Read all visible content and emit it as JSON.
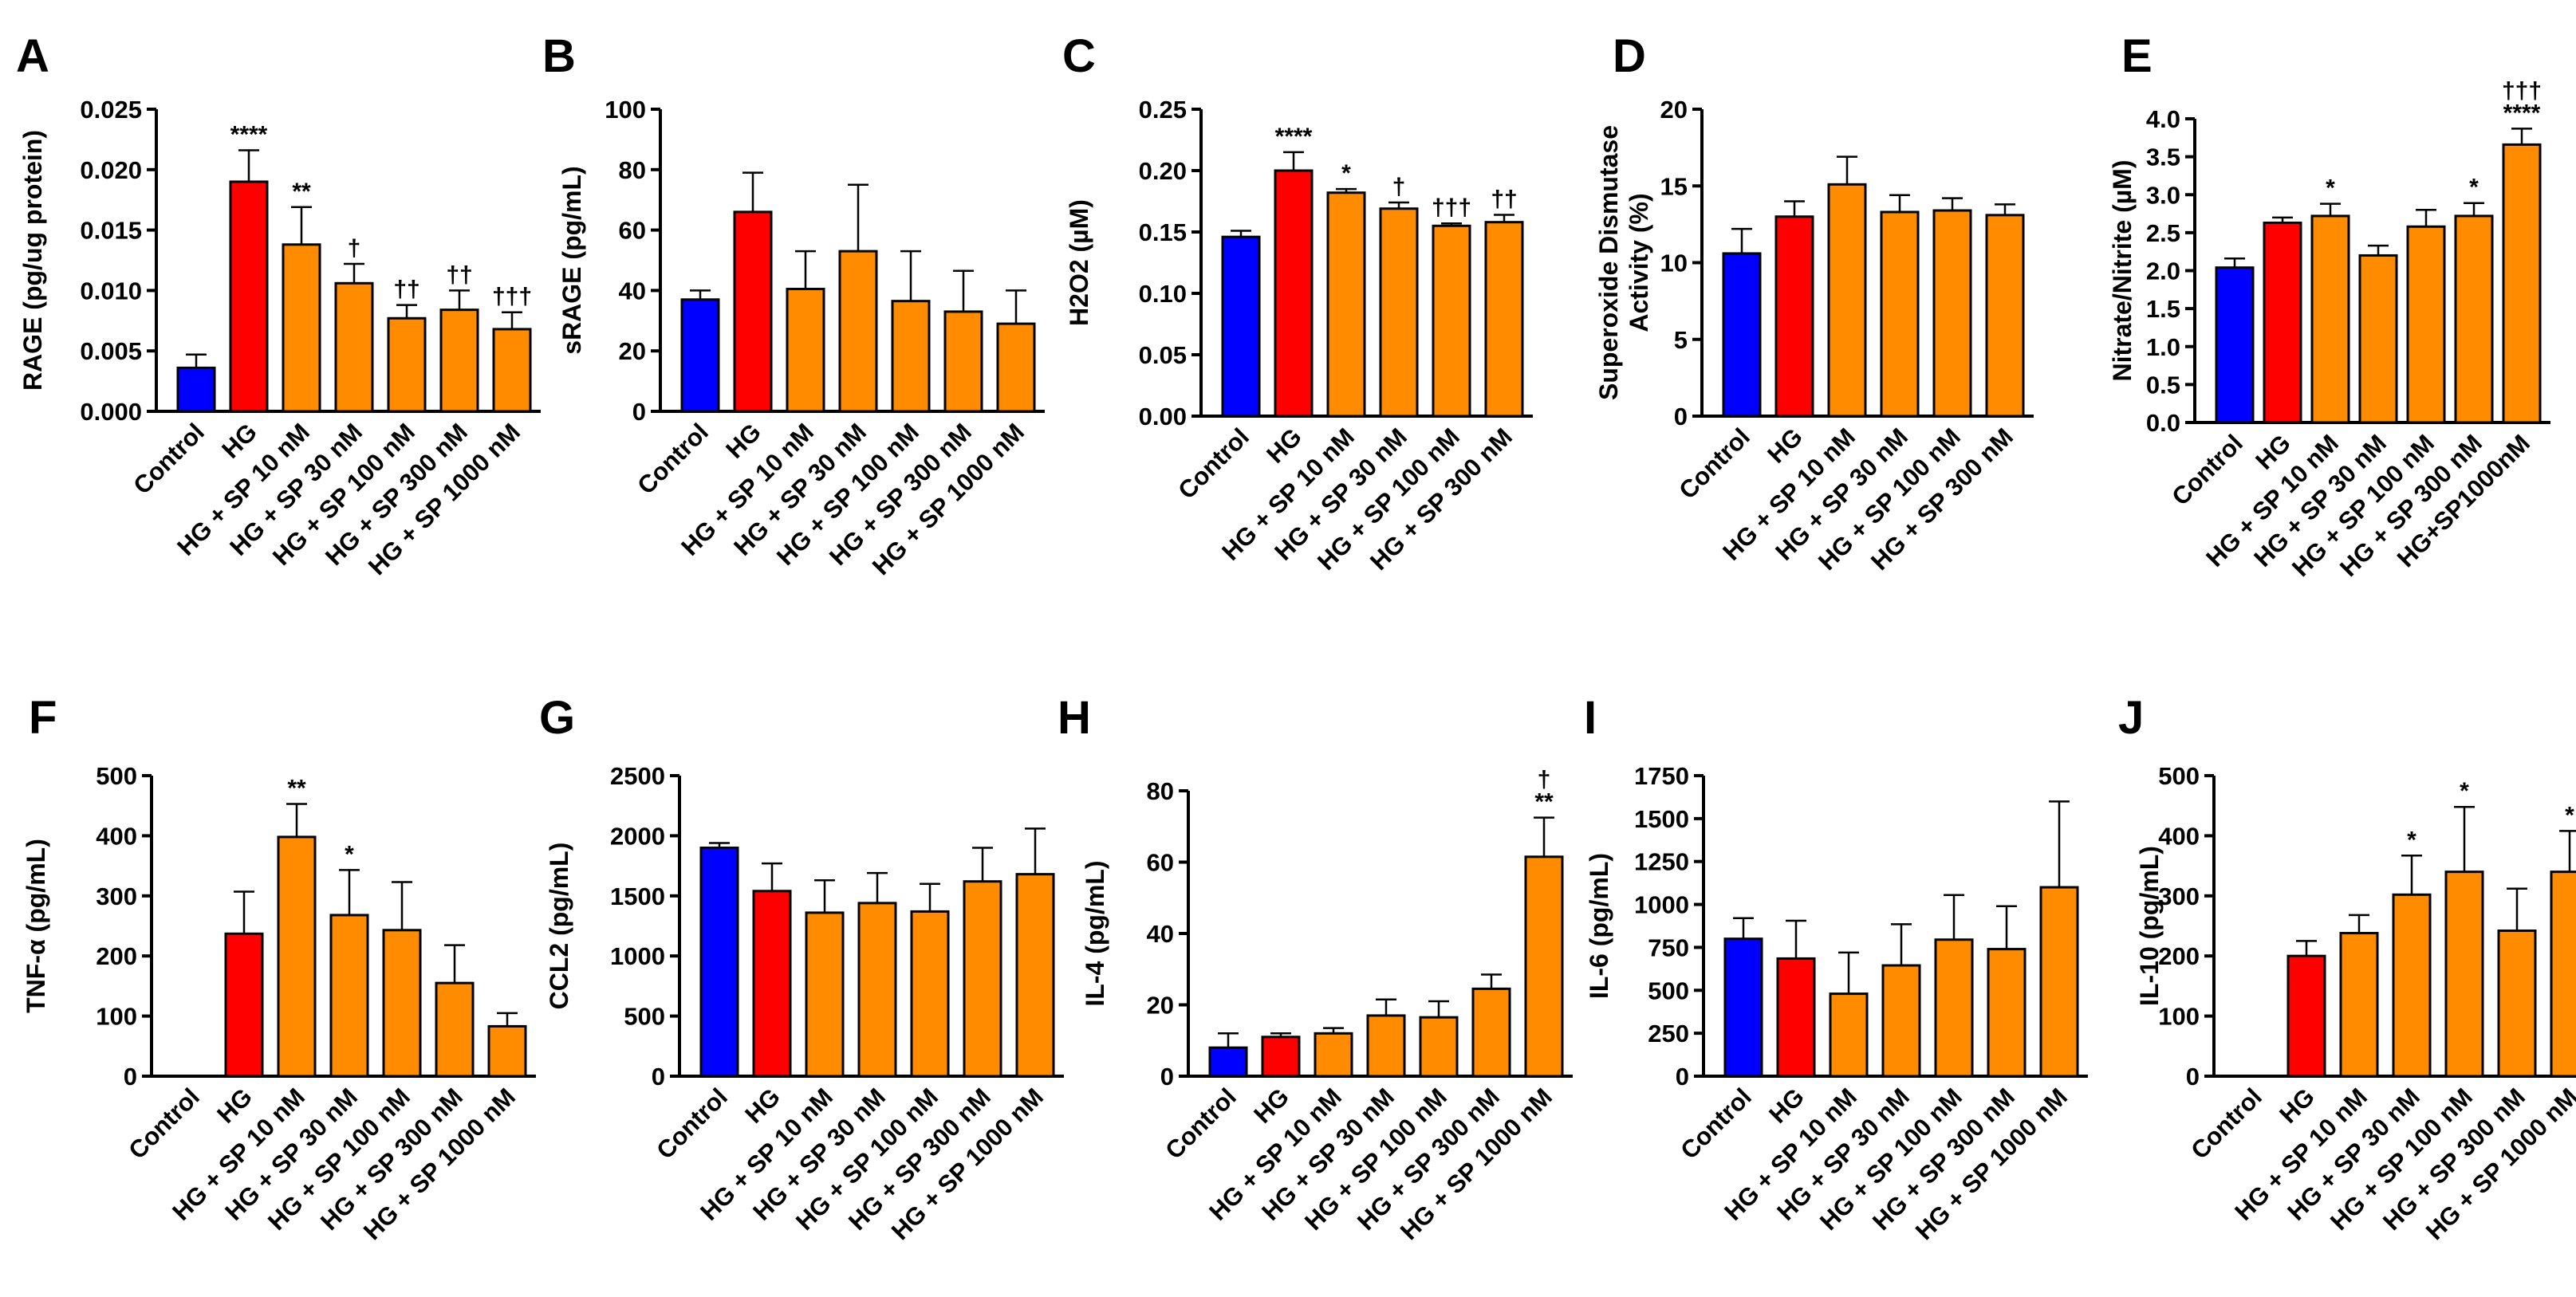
{
  "colors": {
    "control": "#0000ff",
    "hg": "#ff0000",
    "sp": "#ff8c00",
    "axis": "#000000"
  },
  "chart_data": [
    {
      "panel": "A",
      "type": "bar",
      "title": "",
      "ylabel": "RAGE  (pg/ug protein)",
      "ylim": [
        0,
        0.025
      ],
      "yticks": [
        0.0,
        0.005,
        0.01,
        0.015,
        0.02,
        0.025
      ],
      "ytick_labels": [
        "0.000",
        "0.005",
        "0.010",
        "0.015",
        "0.020",
        "0.025"
      ],
      "categories": [
        "Control",
        "HG",
        "HG + SP 10 nM",
        "HG + SP 30 nM",
        "HG + SP 100 nM",
        "HG + SP 300 nM",
        "HG + SP 1000 nM"
      ],
      "values": [
        0.0036,
        0.019,
        0.0138,
        0.0106,
        0.0077,
        0.0084,
        0.0068
      ],
      "errors": [
        0.0011,
        0.0026,
        0.0031,
        0.0016,
        0.0011,
        0.0016,
        0.0014
      ],
      "annotations": [
        "",
        "****",
        "**",
        "†",
        "††",
        "††",
        "†††"
      ]
    },
    {
      "panel": "B",
      "type": "bar",
      "title": "",
      "ylabel": "sRAGE (pg/mL)",
      "ylim": [
        0,
        100
      ],
      "yticks": [
        0,
        20,
        40,
        60,
        80,
        100
      ],
      "ytick_labels": [
        "0",
        "20",
        "40",
        "60",
        "80",
        "100"
      ],
      "categories": [
        "Control",
        "HG",
        "HG + SP 10 nM",
        "HG + SP 30 nM",
        "HG + SP 100 nM",
        "HG + SP 300 nM",
        "HG + SP 1000 nM"
      ],
      "values": [
        37,
        66,
        40.5,
        53,
        36.5,
        33,
        29
      ],
      "errors": [
        3,
        13,
        12.5,
        22,
        16.5,
        13.5,
        11
      ],
      "annotations": [
        "",
        "",
        "",
        "",
        "",
        "",
        ""
      ]
    },
    {
      "panel": "C",
      "type": "bar",
      "title": "",
      "ylabel": "H2O2 (µM)",
      "ylim": [
        0,
        0.25
      ],
      "yticks": [
        0,
        0.05,
        0.1,
        0.15,
        0.2,
        0.25
      ],
      "ytick_labels": [
        "0.00",
        "0.05",
        "0.10",
        "0.15",
        "0.20",
        "0.25"
      ],
      "categories": [
        "Control",
        "HG",
        "HG + SP 10 nM",
        "HG + SP 30 nM",
        "HG + SP 100 nM",
        "HG + SP 300 nM"
      ],
      "values": [
        0.146,
        0.2,
        0.182,
        0.169,
        0.155,
        0.158
      ],
      "errors": [
        0.005,
        0.015,
        0.003,
        0.005,
        0.002,
        0.006
      ],
      "annotations": [
        "",
        "****",
        "*",
        "†",
        "†††",
        "††"
      ]
    },
    {
      "panel": "D",
      "type": "bar",
      "title": "",
      "ylabel": [
        "Superoxide Dismutase",
        "Activity (%)"
      ],
      "ylim": [
        0,
        20
      ],
      "yticks": [
        0,
        5,
        10,
        15,
        20
      ],
      "ytick_labels": [
        "0",
        "5",
        "10",
        "15",
        "20"
      ],
      "categories": [
        "Control",
        "HG",
        "HG + SP 10 nM",
        "HG + SP 30 nM",
        "HG + SP 100 nM",
        "HG + SP 300 nM"
      ],
      "values": [
        10.6,
        13,
        15.1,
        13.3,
        13.4,
        13.1
      ],
      "errors": [
        1.6,
        1,
        1.8,
        1.1,
        0.8,
        0.7
      ],
      "annotations": [
        "",
        "",
        "",
        "",
        "",
        ""
      ]
    },
    {
      "panel": "E",
      "type": "bar",
      "title": "",
      "ylabel": "Nitrate/Nitrite (µM)",
      "ylim": [
        0,
        4
      ],
      "yticks": [
        0,
        0.5,
        1,
        1.5,
        2,
        2.5,
        3,
        3.5,
        4
      ],
      "ytick_labels": [
        "0.0",
        "0.5",
        "1.0",
        "1.5",
        "2.0",
        "2.5",
        "3.0",
        "3.5",
        "4.0"
      ],
      "categories": [
        "Control",
        "HG",
        "HG + SP 10 nM",
        "HG + SP 30 nM",
        "HG + SP 100 nM",
        "HG + SP 300 nM",
        "HG+SP1000nM"
      ],
      "values": [
        2.04,
        2.63,
        2.72,
        2.2,
        2.58,
        2.72,
        3.66
      ],
      "errors": [
        0.12,
        0.07,
        0.16,
        0.13,
        0.22,
        0.17,
        0.21
      ],
      "annotations": [
        "",
        "",
        "*",
        "",
        "",
        "*",
        "†††\n****"
      ]
    },
    {
      "panel": "F",
      "type": "bar",
      "title": "",
      "ylabel": "TNF-α (pg/mL)",
      "ylim": [
        0,
        500
      ],
      "yticks": [
        0,
        100,
        200,
        300,
        400,
        500
      ],
      "ytick_labels": [
        "0",
        "100",
        "200",
        "300",
        "400",
        "500"
      ],
      "categories": [
        "Control",
        "HG",
        "HG + SP 10 nM",
        "HG + SP 30 nM",
        "HG + SP 100 nM",
        "HG + SP 300 nM",
        "HG + SP 1000 nM"
      ],
      "values": [
        0,
        237,
        398,
        268,
        243,
        155,
        83
      ],
      "errors": [
        0,
        70,
        55,
        75,
        80,
        63,
        22
      ],
      "annotations": [
        "",
        "",
        "**",
        "*",
        "",
        "",
        ""
      ]
    },
    {
      "panel": "G",
      "type": "bar",
      "title": "",
      "ylabel": "CCL2 (pg/mL)",
      "ylim": [
        0,
        2500
      ],
      "yticks": [
        0,
        500,
        1000,
        1500,
        2000,
        2500
      ],
      "ytick_labels": [
        "0",
        "500",
        "1000",
        "1500",
        "2000",
        "2500"
      ],
      "categories": [
        "Control",
        "HG",
        "HG + SP 10 nM",
        "HG + SP 30 nM",
        "HG + SP 100 nM",
        "HG + SP 300 nM",
        "HG + SP 1000 nM"
      ],
      "values": [
        1900,
        1540,
        1360,
        1440,
        1370,
        1620,
        1680
      ],
      "errors": [
        40,
        230,
        270,
        250,
        230,
        280,
        380
      ],
      "annotations": [
        "",
        "",
        "",
        "",
        "",
        "",
        ""
      ]
    },
    {
      "panel": "H",
      "type": "bar",
      "title": "",
      "ylabel": "IL-4 (pg/mL)",
      "ylim": [
        0,
        80
      ],
      "yticks": [
        0,
        20,
        40,
        60,
        80
      ],
      "ytick_labels": [
        "0",
        "20",
        "40",
        "60",
        "80"
      ],
      "categories": [
        "Control",
        "HG",
        "HG + SP 10 nM",
        "HG + SP 30 nM",
        "HG + SP 100 nM",
        "HG + SP 300 nM",
        "HG + SP 1000 nM"
      ],
      "values": [
        8,
        11,
        12,
        17,
        16.5,
        24.5,
        61.5
      ],
      "errors": [
        4,
        1,
        1.5,
        4.5,
        4.5,
        4,
        11
      ],
      "annotations": [
        "",
        "",
        "",
        "",
        "",
        "",
        "†\n**"
      ]
    },
    {
      "panel": "I",
      "type": "bar",
      "title": "",
      "ylabel": "IL-6 (pg/mL)",
      "ylim": [
        0,
        1750
      ],
      "yticks": [
        0,
        250,
        500,
        750,
        1000,
        1250,
        1500,
        1750
      ],
      "ytick_labels": [
        "0",
        "250",
        "500",
        "750",
        "1000",
        "1250",
        "1500",
        "1750"
      ],
      "categories": [
        "Control",
        "HG",
        "HG + SP 10 nM",
        "HG + SP 30 nM",
        "HG + SP 100 nM",
        "HG + SP 300 nM",
        "HG + SP 1000 nM"
      ],
      "values": [
        800,
        685,
        480,
        645,
        795,
        740,
        1100
      ],
      "errors": [
        120,
        220,
        240,
        240,
        260,
        250,
        500
      ],
      "annotations": [
        "",
        "",
        "",
        "",
        "",
        "",
        ""
      ]
    },
    {
      "panel": "J",
      "type": "bar",
      "title": "",
      "ylabel": "IL-10 (pg/mL)",
      "ylim": [
        0,
        500
      ],
      "yticks": [
        0,
        100,
        200,
        300,
        400,
        500
      ],
      "ytick_labels": [
        "0",
        "100",
        "200",
        "300",
        "400",
        "500"
      ],
      "categories": [
        "Control",
        "HG",
        "HG + SP 10 nM",
        "HG + SP 30 nM",
        "HG + SP 100 nM",
        "HG + SP 300 nM",
        "HG + SP 1000 nM"
      ],
      "values": [
        0,
        200,
        238,
        302,
        340,
        242,
        340
      ],
      "errors": [
        0,
        25,
        30,
        65,
        108,
        70,
        68
      ],
      "annotations": [
        "",
        "",
        "",
        "*",
        "*",
        "",
        "*"
      ]
    }
  ]
}
